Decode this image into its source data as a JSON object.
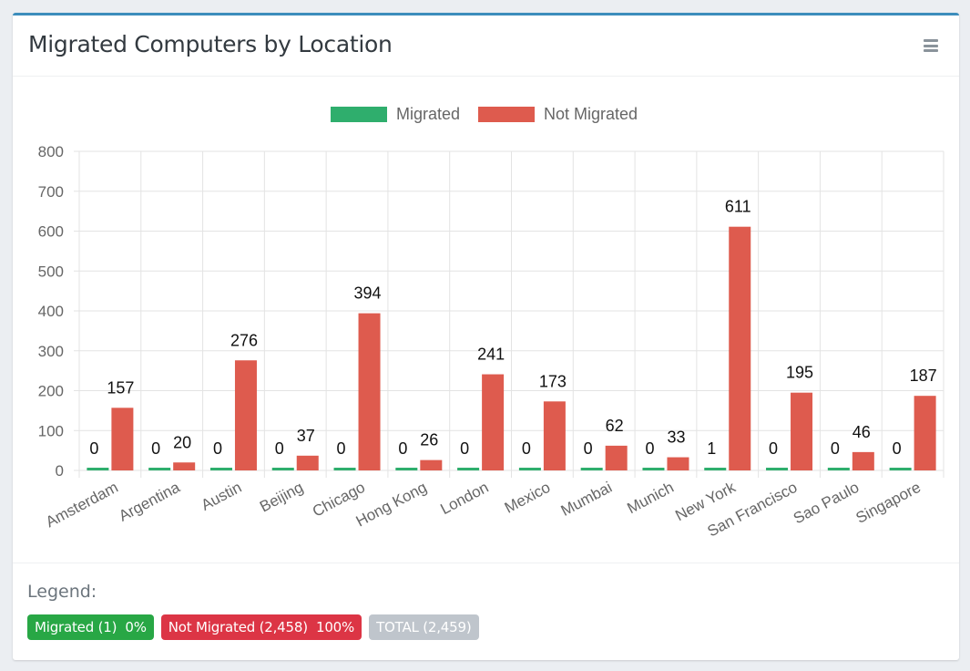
{
  "card": {
    "title": "Migrated Computers by Location",
    "menu_icon": "hamburger-icon"
  },
  "chart_data": {
    "type": "bar",
    "categories": [
      "Amsterdam",
      "Argentina",
      "Austin",
      "Beijing",
      "Chicago",
      "Hong Kong",
      "London",
      "Mexico",
      "Mumbai",
      "Munich",
      "New York",
      "San Francisco",
      "Sao Paulo",
      "Singapore"
    ],
    "series": [
      {
        "name": "Migrated",
        "color": "#2fae6d",
        "values": [
          0,
          0,
          0,
          0,
          0,
          0,
          0,
          0,
          0,
          0,
          1,
          0,
          0,
          0
        ]
      },
      {
        "name": "Not Migrated",
        "color": "#de5b4e",
        "values": [
          157,
          20,
          276,
          37,
          394,
          26,
          241,
          173,
          62,
          33,
          611,
          195,
          46,
          187
        ]
      }
    ],
    "ylim": [
      0,
      800
    ],
    "yticks": [
      0,
      100,
      200,
      300,
      400,
      500,
      600,
      700,
      800
    ],
    "grid": true,
    "legend_position": "top",
    "data_labels": true
  },
  "footer": {
    "legend_label": "Legend:",
    "badges": [
      {
        "text": "Migrated (1)  0%",
        "color": "#28a745"
      },
      {
        "text": "Not Migrated (2,458)  100%",
        "color": "#dc3545"
      },
      {
        "text": "TOTAL (2,459)",
        "color": "#bfc5cc"
      }
    ]
  }
}
